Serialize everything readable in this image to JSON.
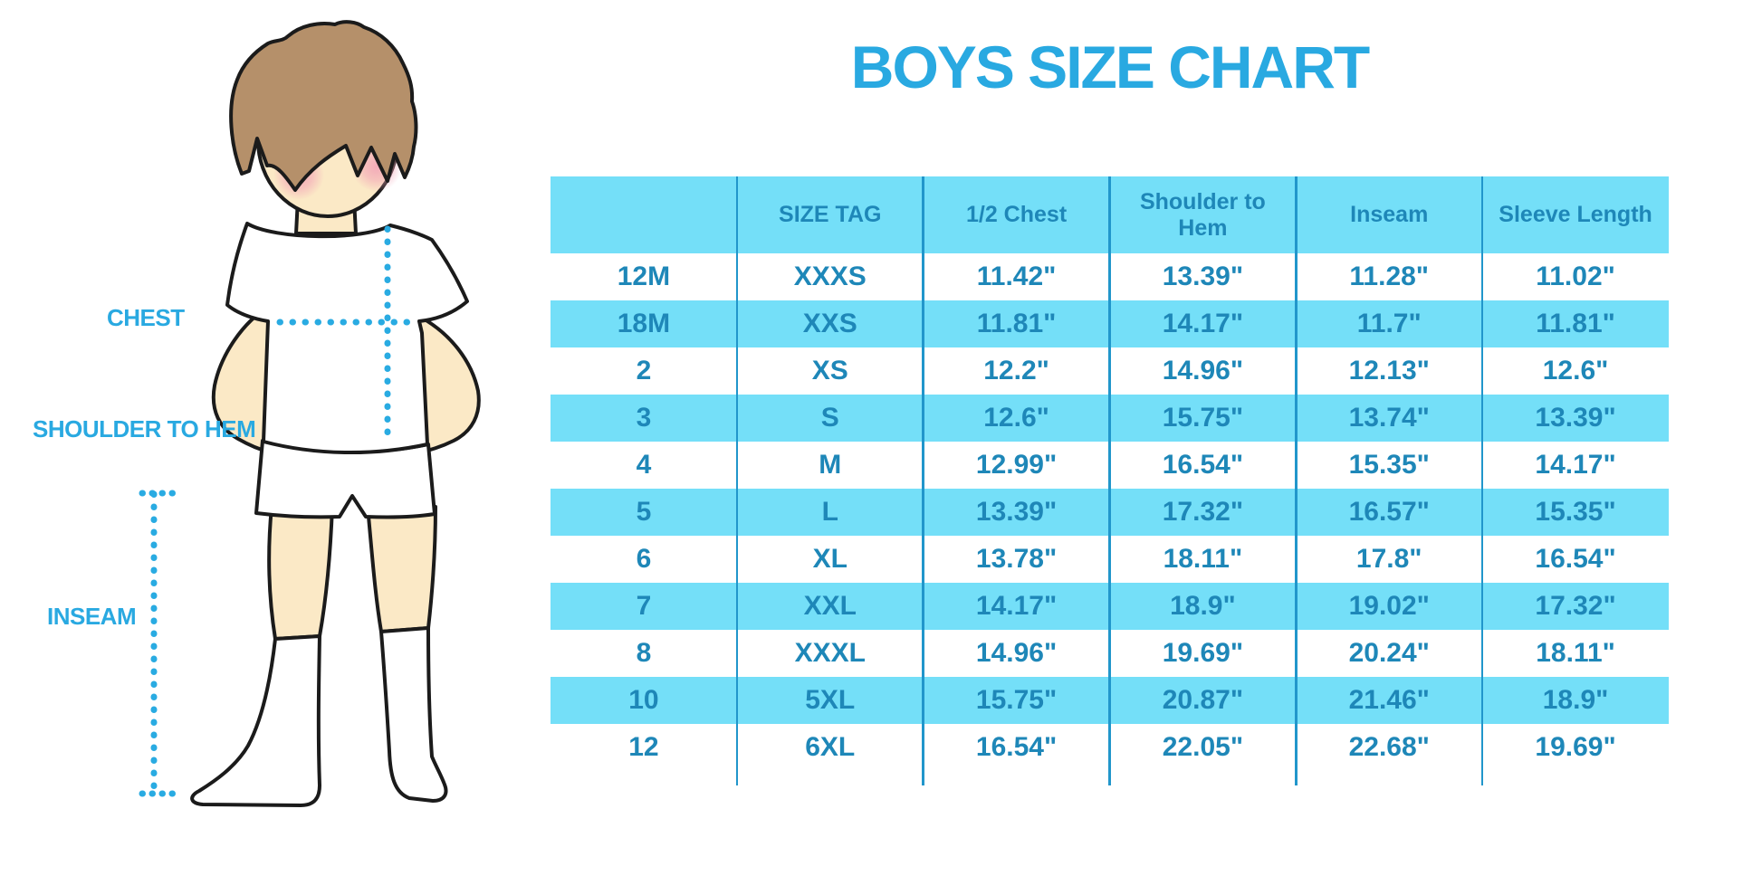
{
  "title": "BOYS SIZE CHART",
  "figure_labels": {
    "chest": "CHEST",
    "shoulder_to_hem": "SHOULDER TO HEM",
    "inseam": "INSEAM"
  },
  "colors": {
    "accent_blue": "#29a9e1",
    "table_text": "#1e87b8",
    "row_band_cyan": "#74dff8",
    "divider_blue": "#2196cb",
    "hair_brown": "#b5906a",
    "skin": "#fbe9c6",
    "blush_pink": "#f2a3b6",
    "outline": "#1b1b1b"
  },
  "chart_data": {
    "type": "table",
    "columns": [
      "",
      "SIZE TAG",
      "1/2 Chest",
      "Shoulder to Hem",
      "Inseam",
      "Sleeve Length"
    ],
    "rows": [
      [
        "12M",
        "XXXS",
        "11.42\"",
        "13.39\"",
        "11.28\"",
        "11.02\""
      ],
      [
        "18M",
        "XXS",
        "11.81\"",
        "14.17\"",
        "11.7\"",
        "11.81\""
      ],
      [
        "2",
        "XS",
        "12.2\"",
        "14.96\"",
        "12.13\"",
        "12.6\""
      ],
      [
        "3",
        "S",
        "12.6\"",
        "15.75\"",
        "13.74\"",
        "13.39\""
      ],
      [
        "4",
        "M",
        "12.99\"",
        "16.54\"",
        "15.35\"",
        "14.17\""
      ],
      [
        "5",
        "L",
        "13.39\"",
        "17.32\"",
        "16.57\"",
        "15.35\""
      ],
      [
        "6",
        "XL",
        "13.78\"",
        "18.11\"",
        "17.8\"",
        "16.54\""
      ],
      [
        "7",
        "XXL",
        "14.17\"",
        "18.9\"",
        "19.02\"",
        "17.32\""
      ],
      [
        "8",
        "XXXL",
        "14.96\"",
        "19.69\"",
        "20.24\"",
        "18.11\""
      ],
      [
        "10",
        "5XL",
        "15.75\"",
        "20.87\"",
        "21.46\"",
        "18.9\""
      ],
      [
        "12",
        "6XL",
        "16.54\"",
        "22.05\"",
        "22.68\"",
        "19.69\""
      ]
    ]
  }
}
